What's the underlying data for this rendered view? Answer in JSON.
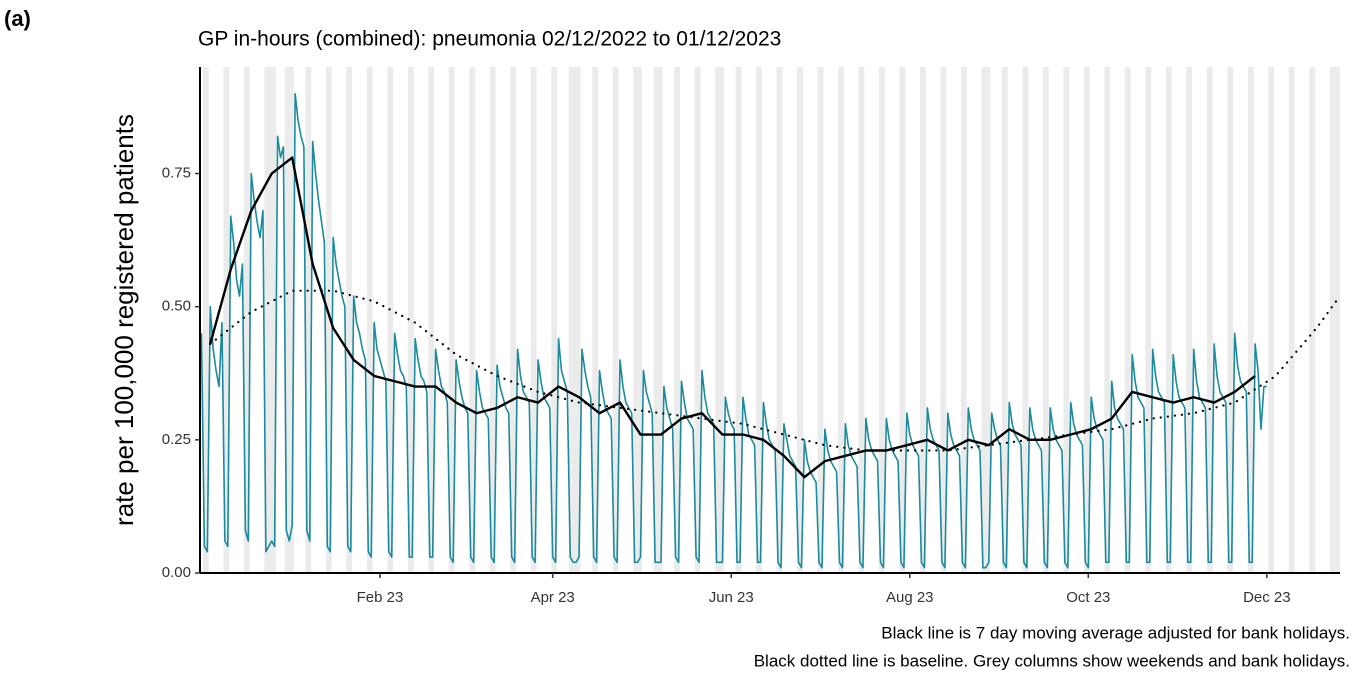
{
  "chart_data": {
    "type": "line",
    "panel_label": "(a)",
    "title": "GP in-hours (combined): pneumonia 02/12/2022 to 01/12/2023",
    "y_label": "rate per 100,000 registered patients",
    "footnotes": [
      "Black line is 7 day moving average adjusted for bank holidays.",
      "Black dotted line is baseline. Grey columns show weekends and bank holidays."
    ],
    "xlim": [
      -0.5,
      389
    ],
    "ylim": [
      0,
      0.95
    ],
    "xticks": [
      {
        "value": 61,
        "label": "Feb 23"
      },
      {
        "value": 120,
        "label": "Apr 23"
      },
      {
        "value": 181,
        "label": "Jun 23"
      },
      {
        "value": 242,
        "label": "Aug 23"
      },
      {
        "value": 303,
        "label": "Oct 23"
      },
      {
        "value": 364,
        "label": "Dec 23"
      }
    ],
    "yticks": [
      {
        "value": 0,
        "label": "0.00"
      },
      {
        "value": 0.25,
        "label": "0.25"
      },
      {
        "value": 0.5,
        "label": "0.50"
      },
      {
        "value": 0.75,
        "label": "0.75"
      }
    ],
    "shade_color": "#ebebeb",
    "weekends": [
      1,
      8,
      15,
      22,
      29,
      36,
      43,
      50,
      57,
      64,
      71,
      78,
      85,
      92,
      99,
      106,
      113,
      120,
      127,
      134,
      141,
      148,
      155,
      162,
      169,
      176,
      183,
      190,
      197,
      204,
      211,
      218,
      225,
      232,
      239,
      246,
      253,
      260,
      267,
      274,
      281,
      288,
      295,
      302,
      309,
      316,
      323,
      330,
      337,
      344,
      351,
      358,
      365,
      372,
      379,
      386
    ],
    "bank_holidays": [
      24,
      25,
      31,
      126,
      129,
      150,
      157,
      178,
      269,
      388,
      389
    ],
    "series": [
      {
        "color": "#1a8a9c",
        "style": "solid",
        "width": 1.6,
        "x": [
          0,
          1,
          2,
          3,
          4,
          5,
          6,
          7,
          8,
          9,
          10,
          11,
          12,
          13,
          14,
          15,
          16,
          17,
          18,
          19,
          20,
          21,
          22,
          23,
          24,
          25,
          26,
          27,
          28,
          29,
          30,
          31,
          32,
          33,
          34,
          35,
          36,
          37,
          38,
          39,
          40,
          41,
          42,
          43,
          44,
          45,
          46,
          47,
          48,
          49,
          50,
          51,
          52,
          53,
          54,
          55,
          56,
          57,
          58,
          59,
          60,
          61,
          62,
          63,
          64,
          65,
          66,
          67,
          68,
          69,
          70,
          71,
          72,
          73,
          74,
          75,
          76,
          77,
          78,
          79,
          80,
          81,
          82,
          83,
          84,
          85,
          86,
          87,
          88,
          89,
          90,
          91,
          92,
          93,
          94,
          95,
          96,
          97,
          98,
          99,
          100,
          101,
          102,
          103,
          104,
          105,
          106,
          107,
          108,
          109,
          110,
          111,
          112,
          113,
          114,
          115,
          116,
          117,
          118,
          119,
          120,
          121,
          122,
          123,
          124,
          125,
          126,
          127,
          128,
          129,
          130,
          131,
          132,
          133,
          134,
          135,
          136,
          137,
          138,
          139,
          140,
          141,
          142,
          143,
          144,
          145,
          146,
          147,
          148,
          149,
          150,
          151,
          152,
          153,
          154,
          155,
          156,
          157,
          158,
          159,
          160,
          161,
          162,
          163,
          164,
          165,
          166,
          167,
          168,
          169,
          170,
          171,
          172,
          173,
          174,
          175,
          176,
          177,
          178,
          179,
          180,
          181,
          182,
          183,
          184,
          185,
          186,
          187,
          188,
          189,
          190,
          191,
          192,
          193,
          194,
          195,
          196,
          197,
          198,
          199,
          200,
          201,
          202,
          203,
          204,
          205,
          206,
          207,
          208,
          209,
          210,
          211,
          212,
          213,
          214,
          215,
          216,
          217,
          218,
          219,
          220,
          221,
          222,
          223,
          224,
          225,
          226,
          227,
          228,
          229,
          230,
          231,
          232,
          233,
          234,
          235,
          236,
          237,
          238,
          239,
          240,
          241,
          242,
          243,
          244,
          245,
          246,
          247,
          248,
          249,
          250,
          251,
          252,
          253,
          254,
          255,
          256,
          257,
          258,
          259,
          260,
          261,
          262,
          263,
          264,
          265,
          266,
          267,
          268,
          269,
          270,
          271,
          272,
          273,
          274,
          275,
          276,
          277,
          278,
          279,
          280,
          281,
          282,
          283,
          284,
          285,
          286,
          287,
          288,
          289,
          290,
          291,
          292,
          293,
          294,
          295,
          296,
          297,
          298,
          299,
          300,
          301,
          302,
          303,
          304,
          305,
          306,
          307,
          308,
          309,
          310,
          311,
          312,
          313,
          314,
          315,
          316,
          317,
          318,
          319,
          320,
          321,
          322,
          323,
          324,
          325,
          326,
          327,
          328,
          329,
          330,
          331,
          332,
          333,
          334,
          335,
          336,
          337,
          338,
          339,
          340,
          341,
          342,
          343,
          344,
          345,
          346,
          347,
          348,
          349,
          350,
          351,
          352,
          353,
          354,
          355,
          356,
          357,
          358,
          359,
          360,
          361,
          362,
          363,
          364
        ],
        "values": [
          0.45,
          0.05,
          0.04,
          0.5,
          0.42,
          0.38,
          0.35,
          0.47,
          0.06,
          0.05,
          0.67,
          0.62,
          0.55,
          0.52,
          0.58,
          0.08,
          0.06,
          0.75,
          0.7,
          0.66,
          0.63,
          0.68,
          0.04,
          0.05,
          0.06,
          0.05,
          0.82,
          0.78,
          0.8,
          0.08,
          0.06,
          0.09,
          0.9,
          0.85,
          0.82,
          0.8,
          0.08,
          0.06,
          0.81,
          0.75,
          0.7,
          0.66,
          0.62,
          0.05,
          0.04,
          0.63,
          0.58,
          0.55,
          0.52,
          0.5,
          0.05,
          0.04,
          0.52,
          0.47,
          0.45,
          0.42,
          0.4,
          0.04,
          0.03,
          0.47,
          0.42,
          0.4,
          0.38,
          0.36,
          0.04,
          0.03,
          0.45,
          0.41,
          0.38,
          0.37,
          0.35,
          0.03,
          0.03,
          0.44,
          0.4,
          0.37,
          0.36,
          0.34,
          0.03,
          0.03,
          0.42,
          0.38,
          0.35,
          0.34,
          0.32,
          0.03,
          0.02,
          0.4,
          0.36,
          0.33,
          0.31,
          0.3,
          0.03,
          0.02,
          0.38,
          0.34,
          0.31,
          0.3,
          0.29,
          0.03,
          0.02,
          0.39,
          0.35,
          0.33,
          0.31,
          0.3,
          0.03,
          0.02,
          0.42,
          0.37,
          0.34,
          0.33,
          0.32,
          0.03,
          0.02,
          0.4,
          0.36,
          0.33,
          0.32,
          0.31,
          0.03,
          0.02,
          0.44,
          0.38,
          0.36,
          0.34,
          0.03,
          0.02,
          0.02,
          0.03,
          0.42,
          0.38,
          0.35,
          0.33,
          0.03,
          0.02,
          0.38,
          0.34,
          0.31,
          0.3,
          0.29,
          0.03,
          0.02,
          0.4,
          0.35,
          0.32,
          0.31,
          0.3,
          0.02,
          0.02,
          0.03,
          0.38,
          0.34,
          0.32,
          0.3,
          0.02,
          0.02,
          0.02,
          0.35,
          0.31,
          0.29,
          0.27,
          0.03,
          0.02,
          0.36,
          0.32,
          0.29,
          0.28,
          0.27,
          0.03,
          0.02,
          0.38,
          0.33,
          0.3,
          0.29,
          0.28,
          0.02,
          0.02,
          0.02,
          0.33,
          0.3,
          0.28,
          0.27,
          0.02,
          0.02,
          0.33,
          0.29,
          0.26,
          0.25,
          0.24,
          0.02,
          0.02,
          0.32,
          0.28,
          0.25,
          0.24,
          0.23,
          0.02,
          0.01,
          0.28,
          0.25,
          0.22,
          0.21,
          0.2,
          0.02,
          0.01,
          0.25,
          0.21,
          0.19,
          0.18,
          0.17,
          0.02,
          0.01,
          0.27,
          0.23,
          0.21,
          0.2,
          0.19,
          0.02,
          0.01,
          0.28,
          0.24,
          0.22,
          0.21,
          0.2,
          0.02,
          0.01,
          0.29,
          0.25,
          0.23,
          0.22,
          0.21,
          0.02,
          0.01,
          0.29,
          0.25,
          0.23,
          0.22,
          0.21,
          0.02,
          0.01,
          0.3,
          0.26,
          0.24,
          0.23,
          0.22,
          0.02,
          0.01,
          0.31,
          0.27,
          0.25,
          0.24,
          0.23,
          0.02,
          0.01,
          0.3,
          0.26,
          0.24,
          0.23,
          0.22,
          0.02,
          0.01,
          0.31,
          0.27,
          0.25,
          0.24,
          0.23,
          0.01,
          0.01,
          0.02,
          0.3,
          0.27,
          0.25,
          0.24,
          0.02,
          0.01,
          0.32,
          0.28,
          0.26,
          0.25,
          0.24,
          0.02,
          0.01,
          0.31,
          0.27,
          0.25,
          0.24,
          0.23,
          0.02,
          0.01,
          0.31,
          0.27,
          0.25,
          0.24,
          0.23,
          0.02,
          0.01,
          0.32,
          0.28,
          0.26,
          0.25,
          0.24,
          0.02,
          0.01,
          0.33,
          0.29,
          0.27,
          0.26,
          0.25,
          0.02,
          0.02,
          0.36,
          0.31,
          0.29,
          0.28,
          0.27,
          0.02,
          0.02,
          0.41,
          0.36,
          0.33,
          0.32,
          0.31,
          0.02,
          0.02,
          0.42,
          0.37,
          0.34,
          0.33,
          0.32,
          0.02,
          0.02,
          0.41,
          0.36,
          0.33,
          0.32,
          0.31,
          0.02,
          0.02,
          0.42,
          0.36,
          0.33,
          0.32,
          0.31,
          0.02,
          0.02,
          0.43,
          0.37,
          0.34,
          0.33,
          0.32,
          0.02,
          0.02,
          0.45,
          0.39,
          0.36,
          0.35,
          0.34,
          0.02,
          0.02,
          0.43,
          0.38,
          0.27,
          0.35,
          0.35
        ]
      },
      {
        "color": "#000000",
        "style": "solid",
        "width": 2.4,
        "x": [
          3,
          10,
          17,
          24,
          31,
          38,
          45,
          52,
          59,
          66,
          73,
          80,
          87,
          94,
          101,
          108,
          115,
          122,
          129,
          136,
          143,
          150,
          157,
          164,
          171,
          178,
          185,
          192,
          199,
          206,
          213,
          220,
          227,
          234,
          241,
          248,
          255,
          262,
          269,
          276,
          283,
          290,
          297,
          304,
          311,
          318,
          325,
          332,
          339,
          346,
          353,
          360
        ],
        "values": [
          0.43,
          0.57,
          0.68,
          0.75,
          0.78,
          0.58,
          0.46,
          0.4,
          0.37,
          0.36,
          0.35,
          0.35,
          0.32,
          0.3,
          0.31,
          0.33,
          0.32,
          0.35,
          0.33,
          0.3,
          0.32,
          0.26,
          0.26,
          0.29,
          0.3,
          0.26,
          0.26,
          0.25,
          0.22,
          0.18,
          0.21,
          0.22,
          0.23,
          0.23,
          0.24,
          0.25,
          0.23,
          0.25,
          0.24,
          0.27,
          0.25,
          0.25,
          0.26,
          0.27,
          0.29,
          0.34,
          0.33,
          0.32,
          0.33,
          0.32,
          0.34,
          0.37
        ]
      },
      {
        "color": "#000000",
        "style": "dotted",
        "width": 2.2,
        "x": [
          3,
          17,
          31,
          45,
          59,
          73,
          87,
          101,
          115,
          129,
          143,
          157,
          171,
          185,
          199,
          213,
          227,
          241,
          255,
          269,
          283,
          297,
          311,
          325,
          339,
          353,
          367,
          381,
          389
        ],
        "values": [
          0.43,
          0.49,
          0.53,
          0.53,
          0.51,
          0.47,
          0.41,
          0.37,
          0.34,
          0.32,
          0.31,
          0.3,
          0.29,
          0.28,
          0.26,
          0.24,
          0.23,
          0.23,
          0.23,
          0.24,
          0.25,
          0.26,
          0.27,
          0.29,
          0.3,
          0.32,
          0.37,
          0.46,
          0.52
        ]
      }
    ]
  }
}
